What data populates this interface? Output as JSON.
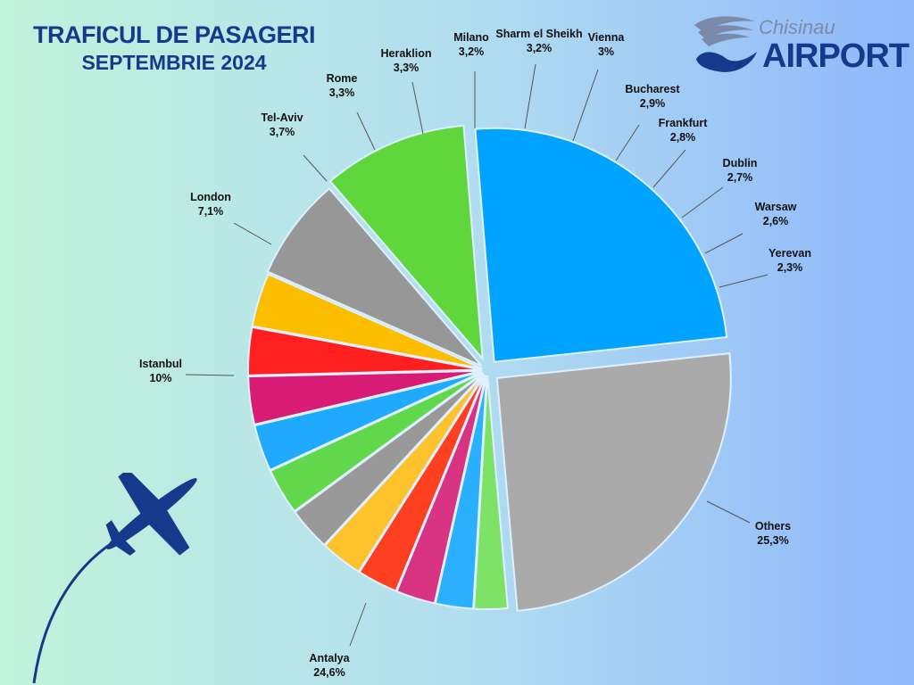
{
  "title": {
    "line1": "TRAFICUL DE PASAGERI",
    "line2": "SEPTEMBRIE 2024"
  },
  "logo": {
    "city": "Chisinau",
    "word": "AIRPORT",
    "icon": "wing-hand-logo-icon"
  },
  "decoration": {
    "icon": "airplane-icon"
  },
  "chart_data": {
    "type": "pie",
    "slices": [
      {
        "label": "Others",
        "value_text": "25,3%",
        "value": 25.3,
        "color": "#aaaaaa"
      },
      {
        "label": "Antalya",
        "value_text": "24,6%",
        "value": 24.6,
        "color": "#00a3ff"
      },
      {
        "label": "Istanbul",
        "value_text": "10%",
        "value": 10.0,
        "color": "#5fd63b"
      },
      {
        "label": "London",
        "value_text": "7,1%",
        "value": 7.1,
        "color": "#979797"
      },
      {
        "label": "Tel-Aviv",
        "value_text": "3,7%",
        "value": 3.7,
        "color": "#fdbe00"
      },
      {
        "label": "Rome",
        "value_text": "3,3%",
        "value": 3.3,
        "color": "#ff1f1f"
      },
      {
        "label": "Heraklion",
        "value_text": "3,3%",
        "value": 3.3,
        "color": "#d81b74"
      },
      {
        "label": "Milano",
        "value_text": "3,2%",
        "value": 3.2,
        "color": "#1faaff"
      },
      {
        "label": "Sharm el Sheikh",
        "value_text": "3,2%",
        "value": 3.2,
        "color": "#61d84b"
      },
      {
        "label": "Vienna",
        "value_text": "3%",
        "value": 3.0,
        "color": "#999999"
      },
      {
        "label": "Bucharest",
        "value_text": "2,9%",
        "value": 2.9,
        "color": "#fdc22c"
      },
      {
        "label": "Frankfurt",
        "value_text": "2,8%",
        "value": 2.8,
        "color": "#ff4020"
      },
      {
        "label": "Dublin",
        "value_text": "2,7%",
        "value": 2.7,
        "color": "#d93383"
      },
      {
        "label": "Warsaw",
        "value_text": "2,6%",
        "value": 2.6,
        "color": "#2ab0ff"
      },
      {
        "label": "Yerevan",
        "value_text": "2,3%",
        "value": 2.3,
        "color": "#7ee266"
      }
    ]
  }
}
